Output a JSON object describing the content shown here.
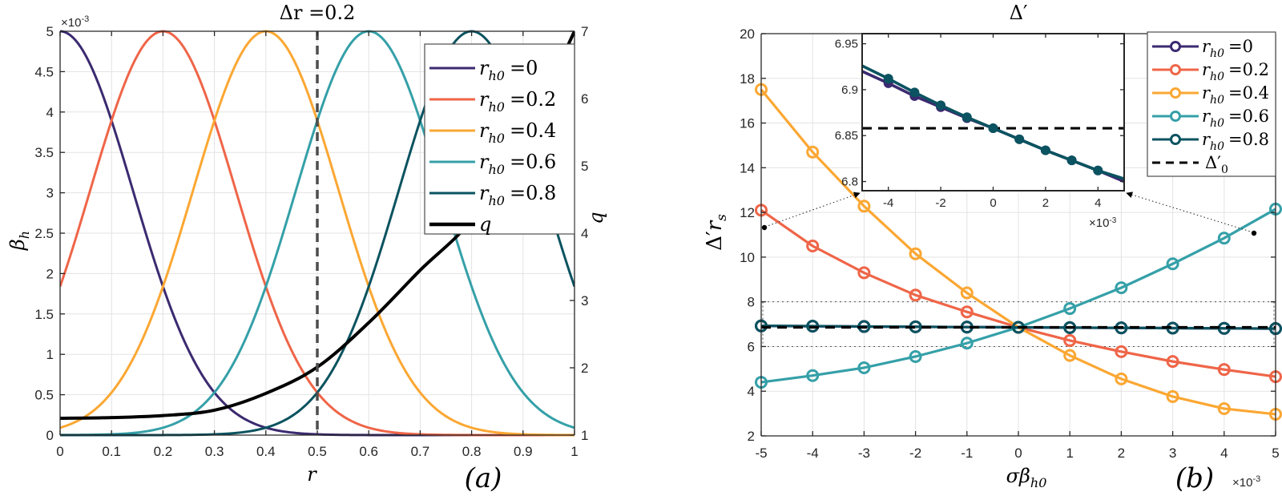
{
  "chart_data": [
    {
      "id": "a",
      "type": "line",
      "title": "Δr =0.2",
      "panel_label": "(a)",
      "xlabel": "r",
      "ylabel": "β_h",
      "ylabel_right": "q",
      "y_multiplier_label": "×10-3",
      "xlim": [
        0,
        1
      ],
      "ylim": [
        0,
        5
      ],
      "ylim_right": [
        1,
        7
      ],
      "xticks": [
        "0",
        "0.1",
        "0.2",
        "0.3",
        "0.4",
        "0.5",
        "0.6",
        "0.7",
        "0.8",
        "0.9",
        "1"
      ],
      "yticks": [
        "0",
        "0.5",
        "1",
        "1.5",
        "2",
        "2.5",
        "3",
        "3.5",
        "4",
        "4.5",
        "5"
      ],
      "yticks_right": [
        "1",
        "2",
        "3",
        "4",
        "5",
        "6",
        "7"
      ],
      "grid": true,
      "legend_position": "top-right",
      "vertical_marker": {
        "x": 0.5,
        "style": "dashed"
      },
      "series": [
        {
          "name": "r_h0 =0",
          "label_main": "r",
          "label_sub": "h0",
          "label_val": "=0",
          "center": 0.0,
          "amplitude": 5,
          "width_sq": 0.04,
          "color": "#3b2a70"
        },
        {
          "name": "r_h0 =0.2",
          "label_main": "r",
          "label_sub": "h0",
          "label_val": "=0.2",
          "center": 0.2,
          "amplitude": 5,
          "width_sq": 0.04,
          "color": "#ef6548"
        },
        {
          "name": "r_h0 =0.4",
          "label_main": "r",
          "label_sub": "h0",
          "label_val": "=0.4",
          "center": 0.4,
          "amplitude": 5,
          "width_sq": 0.04,
          "color": "#fba733"
        },
        {
          "name": "r_h0 =0.6",
          "label_main": "r",
          "label_sub": "h0",
          "label_val": "=0.6",
          "center": 0.6,
          "amplitude": 5,
          "width_sq": 0.04,
          "color": "#35a0a8"
        },
        {
          "name": "r_h0 =0.8",
          "label_main": "r",
          "label_sub": "h0",
          "label_val": "=0.8",
          "center": 0.8,
          "amplitude": 5,
          "width_sq": 0.04,
          "color": "#0b5360"
        }
      ],
      "q_series": {
        "name": "q",
        "color": "#000000",
        "x": [
          0,
          0.1,
          0.2,
          0.3,
          0.4,
          0.5,
          0.6,
          0.7,
          0.8,
          0.9,
          1.0
        ],
        "y": [
          1.25,
          1.26,
          1.29,
          1.37,
          1.62,
          2.01,
          2.67,
          3.45,
          4.2,
          5.4,
          7.0
        ]
      }
    },
    {
      "id": "b",
      "type": "line",
      "title": "Δ′",
      "panel_label": "(b)",
      "xlabel": "σβ_h0",
      "ylabel": "Δ′r_s",
      "x_multiplier_label": "×10-3",
      "xlim": [
        -5,
        5
      ],
      "ylim": [
        2,
        20
      ],
      "xticks": [
        "-5",
        "-4",
        "-3",
        "-2",
        "-1",
        "0",
        "1",
        "2",
        "3",
        "4",
        "5"
      ],
      "yticks": [
        "2",
        "4",
        "6",
        "8",
        "10",
        "12",
        "14",
        "16",
        "18",
        "20"
      ],
      "grid": true,
      "legend_position": "top-right",
      "x": [
        -5,
        -4,
        -3,
        -2,
        -1,
        0,
        1,
        2,
        3,
        4,
        5
      ],
      "series": [
        {
          "name": "r_h0 =0",
          "label_val": "=0",
          "color": "#3b2a70",
          "values": [
            6.92,
            6.907,
            6.893,
            6.881,
            6.869,
            6.858,
            6.846,
            6.834,
            6.823,
            6.812,
            6.8
          ]
        },
        {
          "name": "r_h0 =0.2",
          "label_val": "=0.2",
          "color": "#ef6548",
          "values": [
            12.1,
            10.5,
            9.3,
            8.3,
            7.55,
            6.86,
            6.27,
            5.77,
            5.33,
            4.97,
            4.65
          ]
        },
        {
          "name": "r_h0 =0.4",
          "label_val": "=0.4",
          "color": "#fba733",
          "values": [
            17.5,
            14.7,
            12.28,
            10.15,
            8.4,
            6.86,
            5.6,
            4.55,
            3.76,
            3.22,
            2.97
          ]
        },
        {
          "name": "r_h0 =0.6",
          "label_val": "=0.6",
          "color": "#35a0a8",
          "values": [
            4.4,
            4.7,
            5.05,
            5.55,
            6.15,
            6.86,
            7.7,
            8.63,
            9.7,
            10.85,
            12.15
          ]
        },
        {
          "name": "r_h0 =0.8",
          "label_val": "=0.8",
          "color": "#0b5360",
          "values": [
            6.926,
            6.912,
            6.897,
            6.883,
            6.87,
            6.858,
            6.846,
            6.834,
            6.823,
            6.812,
            6.803
          ]
        }
      ],
      "reference_line": {
        "name": "Δ′0",
        "label_main": "Δ′",
        "label_sub": "0",
        "value": 6.858,
        "style": "dashed",
        "color": "#000000"
      },
      "zoom_band": {
        "ymin": 6,
        "ymax": 8
      },
      "inset": {
        "xlim": [
          -5,
          5
        ],
        "ylim": [
          6.79,
          6.961
        ],
        "xticks": [
          "-4",
          "-2",
          "0",
          "2",
          "4"
        ],
        "xtick_values": [
          -4,
          -2,
          0,
          2,
          4
        ],
        "yticks": [
          "6.8",
          "6.85",
          "6.9",
          "6.95"
        ],
        "ytick_values": [
          6.8,
          6.85,
          6.9,
          6.95
        ],
        "x_multiplier_label": "×10-3",
        "series_shown": [
          "r_h0 =0",
          "r_h0 =0.8"
        ]
      }
    }
  ]
}
